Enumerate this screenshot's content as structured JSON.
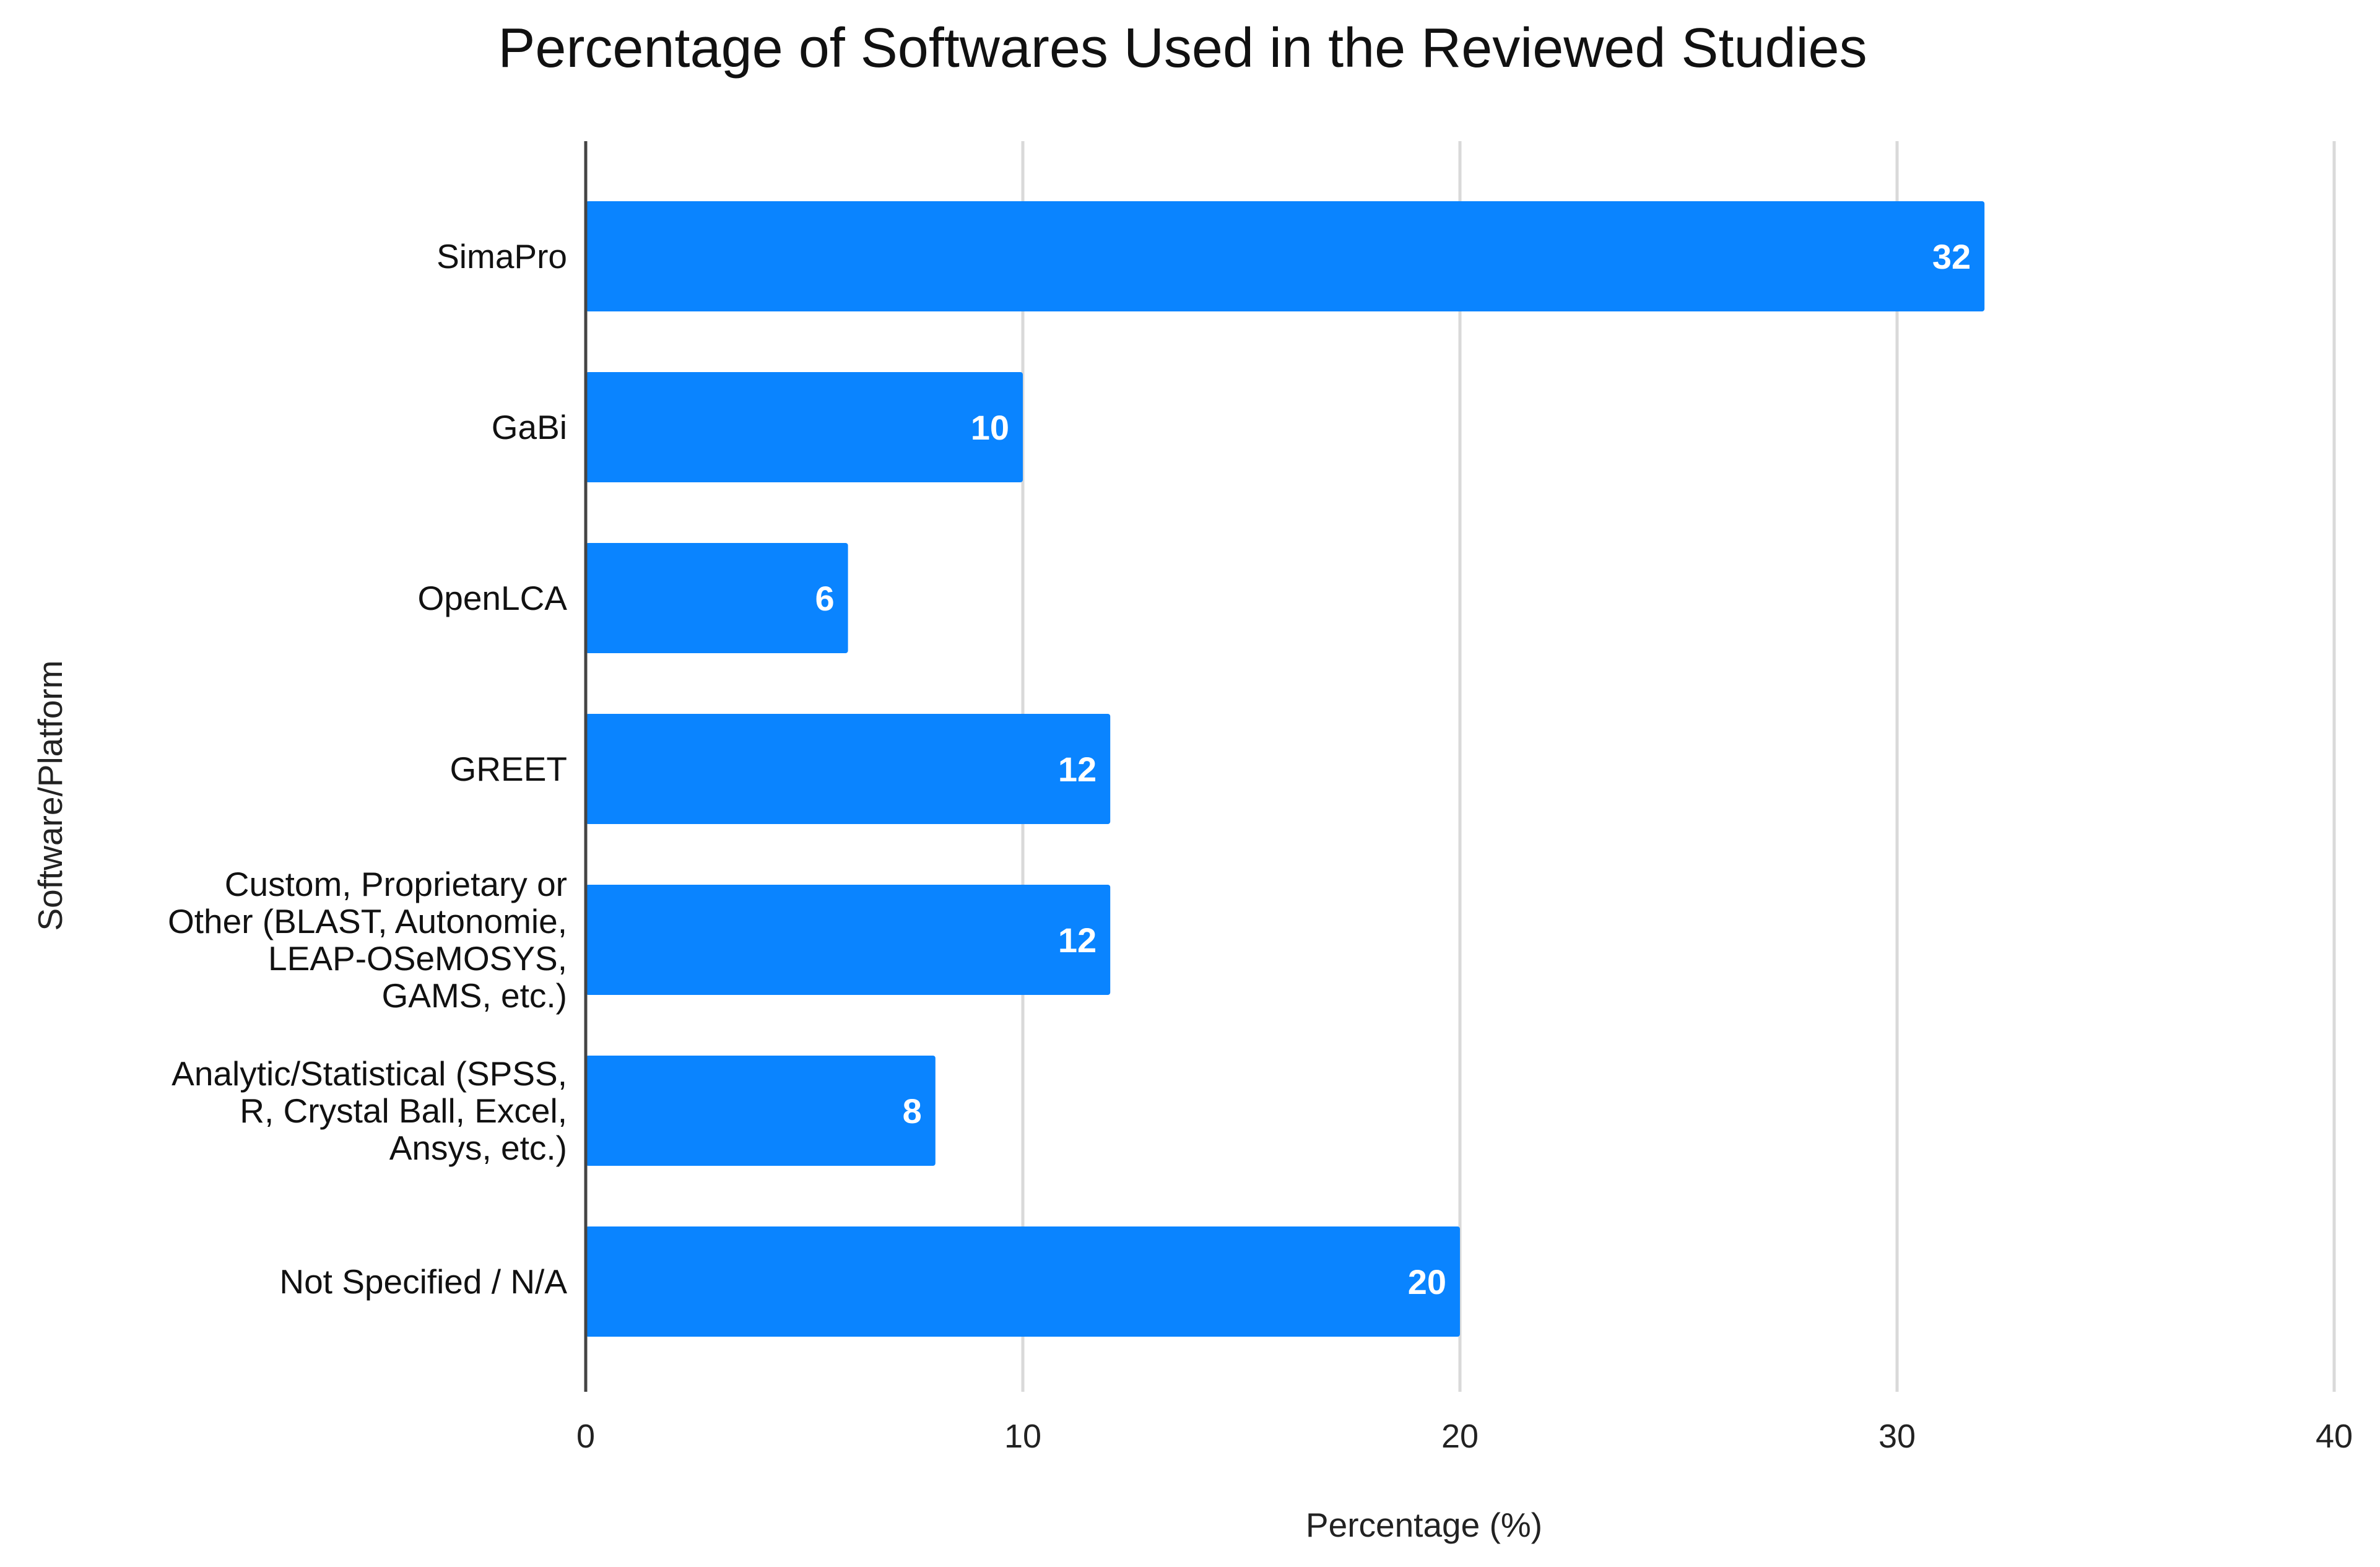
{
  "chart_data": {
    "type": "bar",
    "orientation": "horizontal",
    "title": "Percentage of Softwares Used in the Reviewed Studies",
    "xlabel": "Percentage (%)",
    "ylabel": "Software/Platform",
    "xlim": [
      0,
      40
    ],
    "xticks": [
      "0",
      "10",
      "20",
      "30",
      "40"
    ],
    "grid": true,
    "legend": "none",
    "bar_color": "#0a84ff",
    "categories": [
      [
        "SimaPro"
      ],
      [
        "GaBi"
      ],
      [
        "OpenLCA"
      ],
      [
        "GREET"
      ],
      [
        "Custom, Proprietary or",
        "Other (BLAST, Autonomie,",
        "LEAP-OSeMOSYS,",
        "GAMS, etc.)"
      ],
      [
        "Analytic/Statistical (SPSS,",
        "R, Crystal Ball, Excel,",
        "Ansys, etc.)"
      ],
      [
        "Not Specified / N/A"
      ]
    ],
    "values": [
      32,
      10,
      6,
      12,
      12,
      8,
      20
    ],
    "data_labels": [
      "32",
      "10",
      "6",
      "12",
      "12",
      "8",
      "20"
    ]
  }
}
